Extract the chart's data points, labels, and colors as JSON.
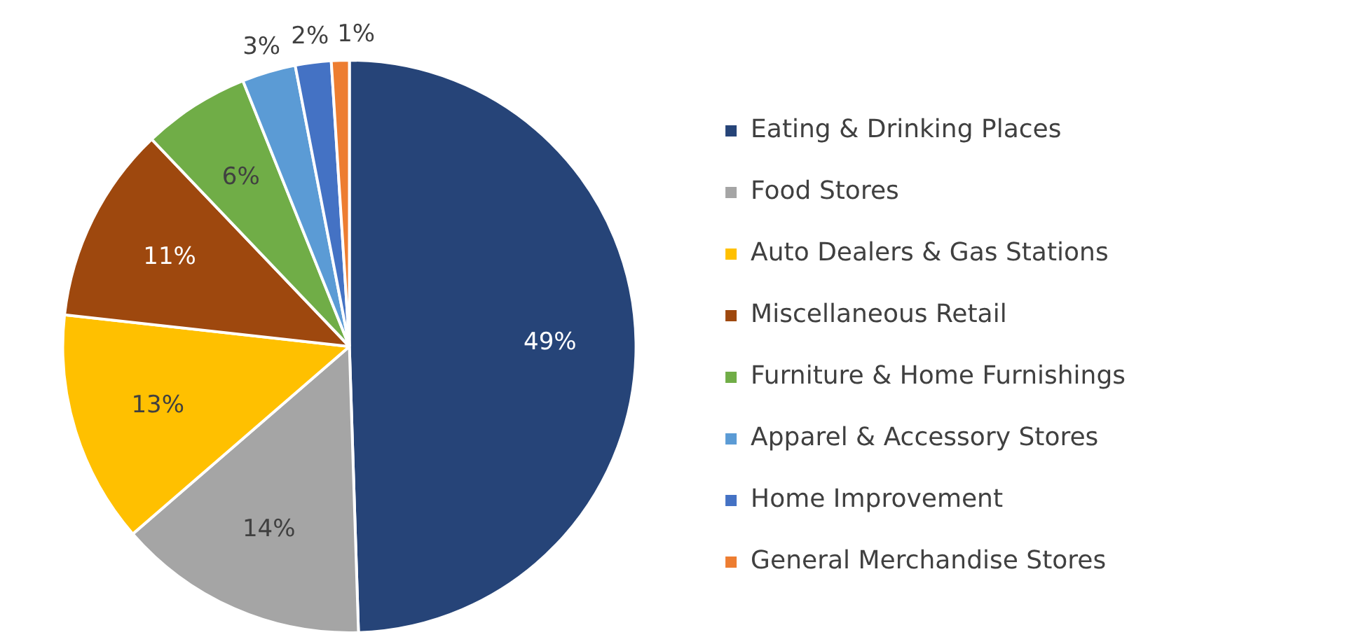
{
  "chart_data": {
    "type": "pie",
    "categories": [
      "Eating & Drinking Places",
      "Food Stores",
      "Auto Dealers & Gas Stations",
      "Miscellaneous Retail",
      "Furniture & Home Furnishings",
      "Apparel & Accessory Stores",
      "Home Improvement",
      "General Merchandise Stores"
    ],
    "values": [
      49,
      14,
      13,
      11,
      6,
      3,
      2,
      1
    ],
    "colors": [
      "#264478",
      "#a5a5a5",
      "#ffc000",
      "#9e480e",
      "#70ad47",
      "#5b9bd5",
      "#4472c4",
      "#ed7d31"
    ],
    "value_labels": [
      "49%",
      "14%",
      "13%",
      "11%",
      "6%",
      "3%",
      "2%",
      "1%"
    ],
    "legend": "right"
  }
}
